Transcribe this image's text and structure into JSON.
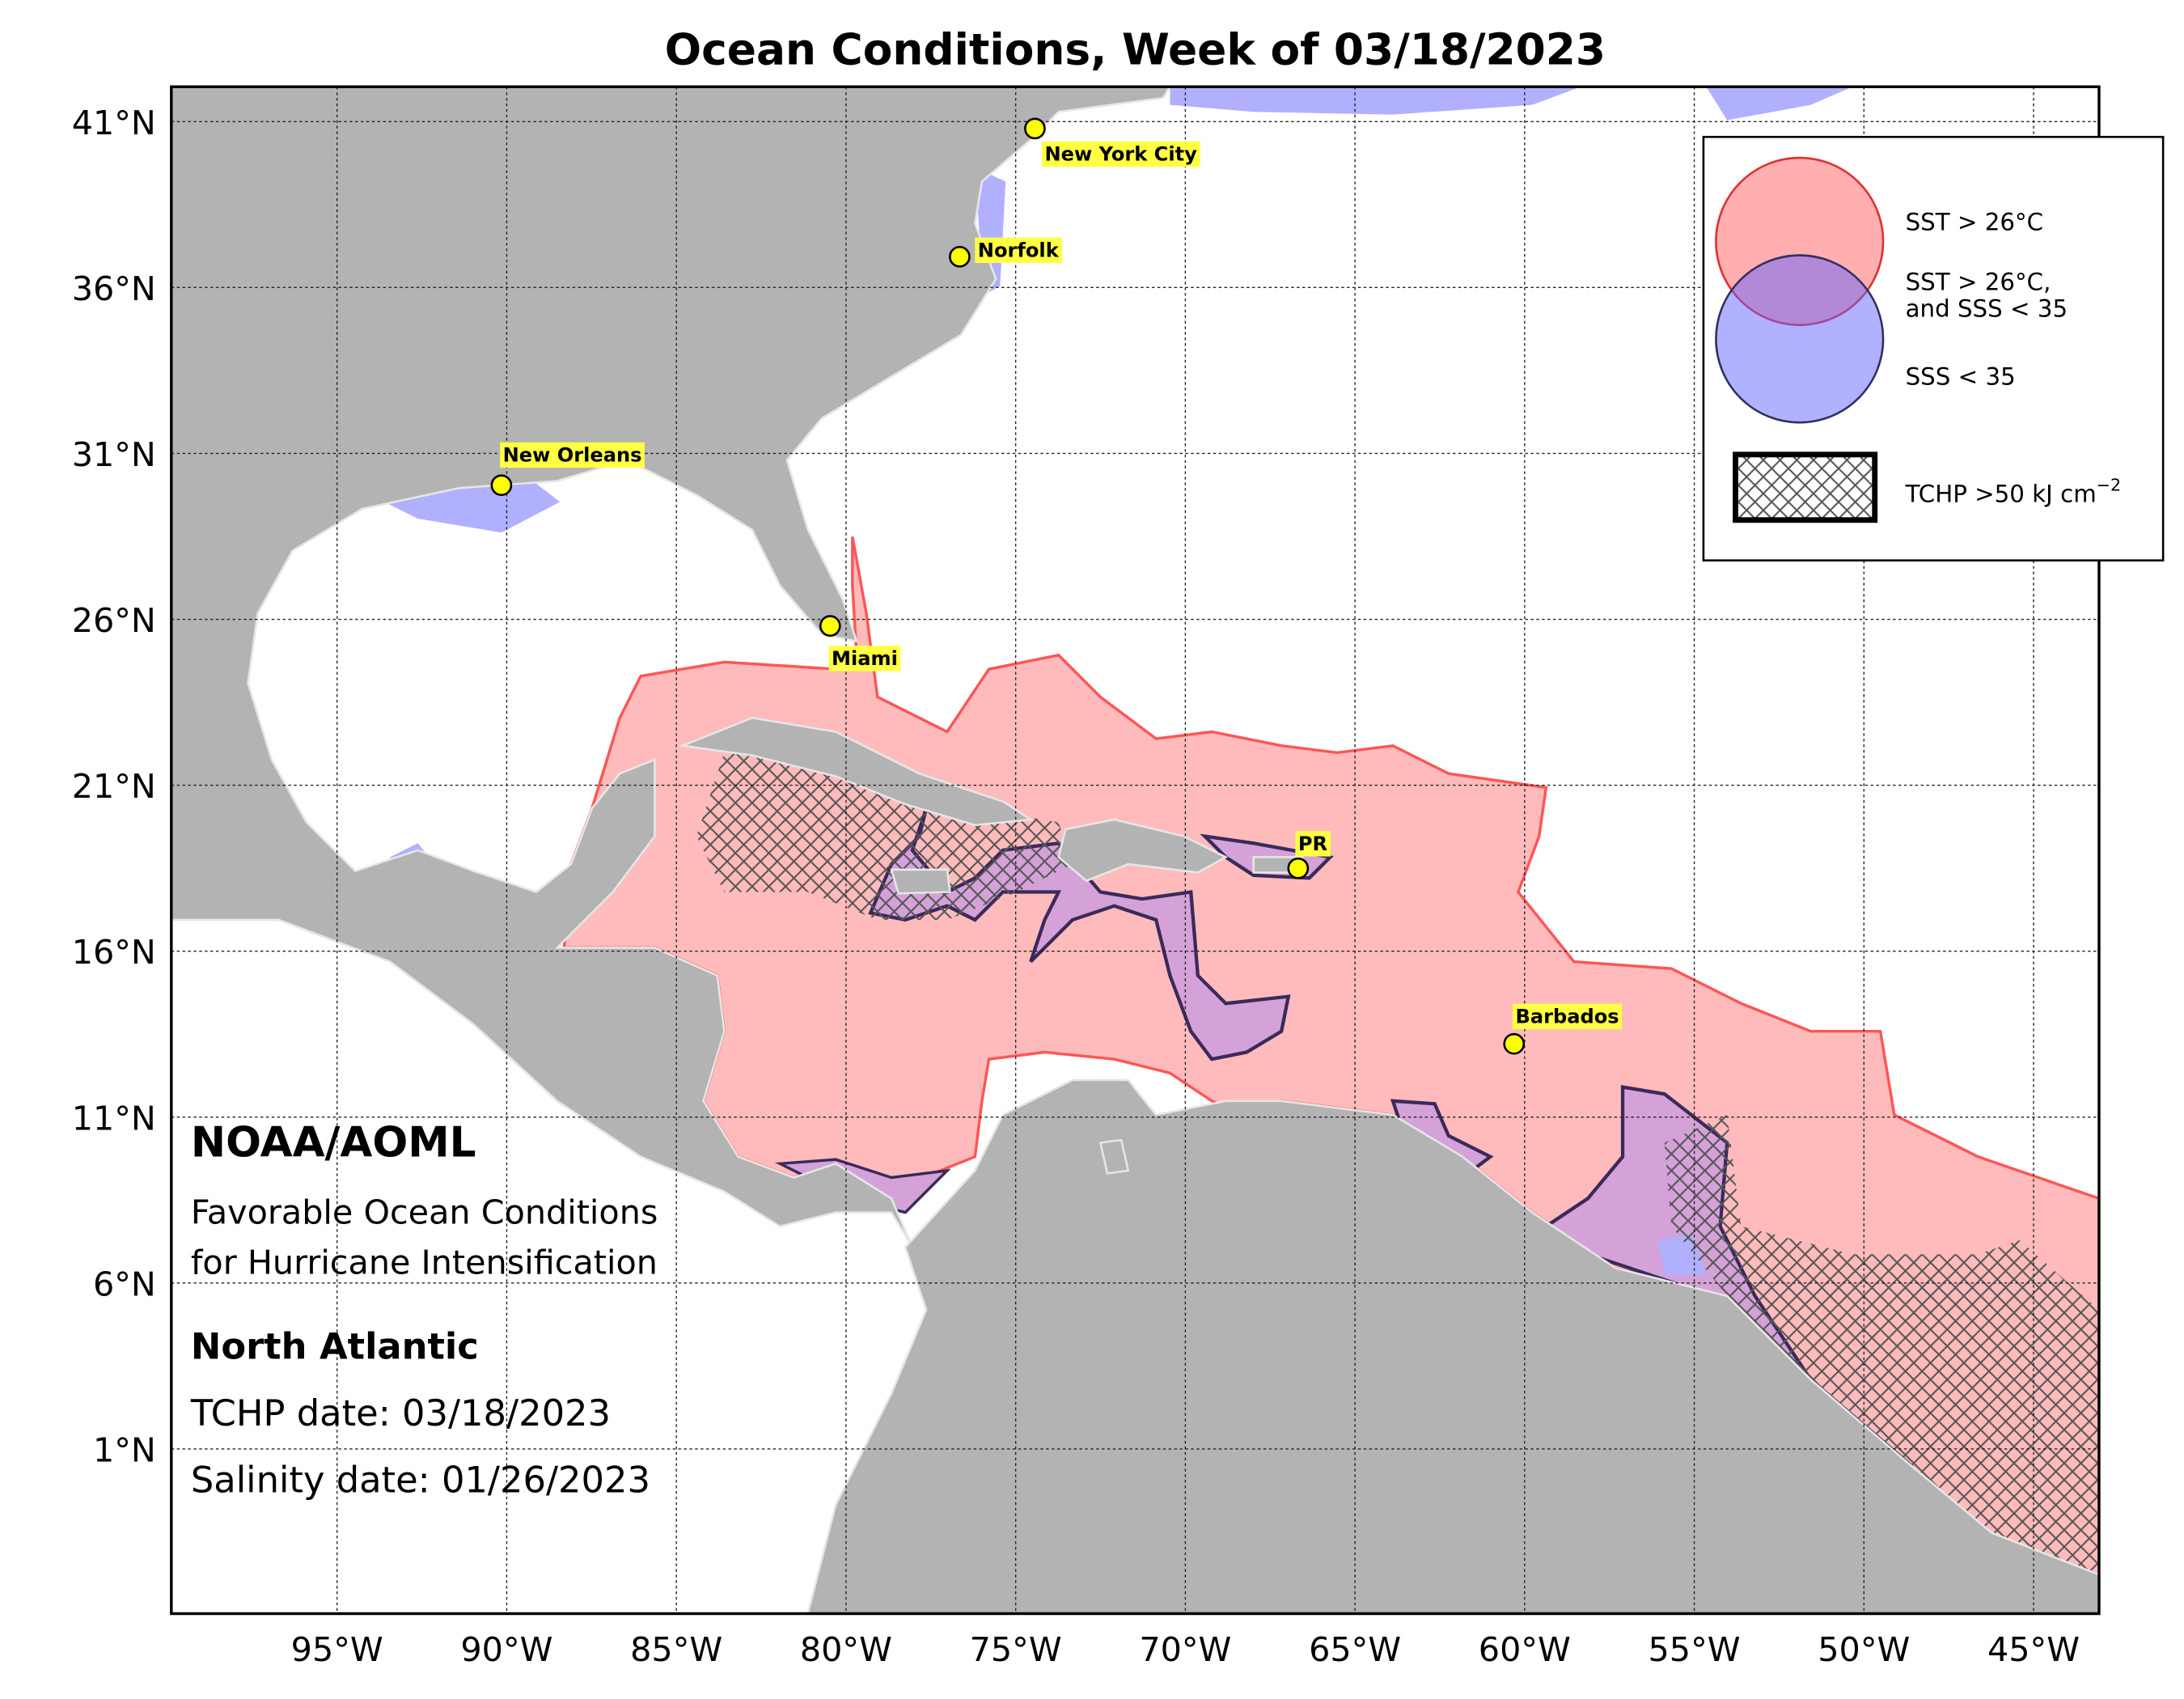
{
  "title": "Ocean Conditions, Week of 03/18/2023",
  "lat_labels": [
    "41°N",
    "36°N",
    "31°N",
    "26°N",
    "21°N",
    "16°N",
    "11°N",
    "6°N",
    "1°N"
  ],
  "lon_labels": [
    "95°W",
    "90°W",
    "85°W",
    "80°W",
    "75°W",
    "70°W",
    "65°W",
    "60°W",
    "55°W",
    "50°W",
    "45°W"
  ],
  "cities": [
    "New York City",
    "Norfolk",
    "New Orleans",
    "Miami",
    "PR",
    "Barbados"
  ],
  "legend": {
    "sst": "SST > 26°C",
    "both": [
      "SST > 26°C,",
      "and SSS < 35"
    ],
    "sss": "SSS < 35",
    "tchp": {
      "text": "TCHP >50 kJ cm",
      "superscript": "−2"
    }
  },
  "info": {
    "org": "NOAA/AOML",
    "subtitle": [
      "Favorable Ocean Conditions",
      "for Hurricane Intensification"
    ],
    "region": "North Atlantic",
    "tchp_date": "TCHP date: 03/18/2023",
    "salinity_date": "Salinity date: 01/26/2023"
  }
}
